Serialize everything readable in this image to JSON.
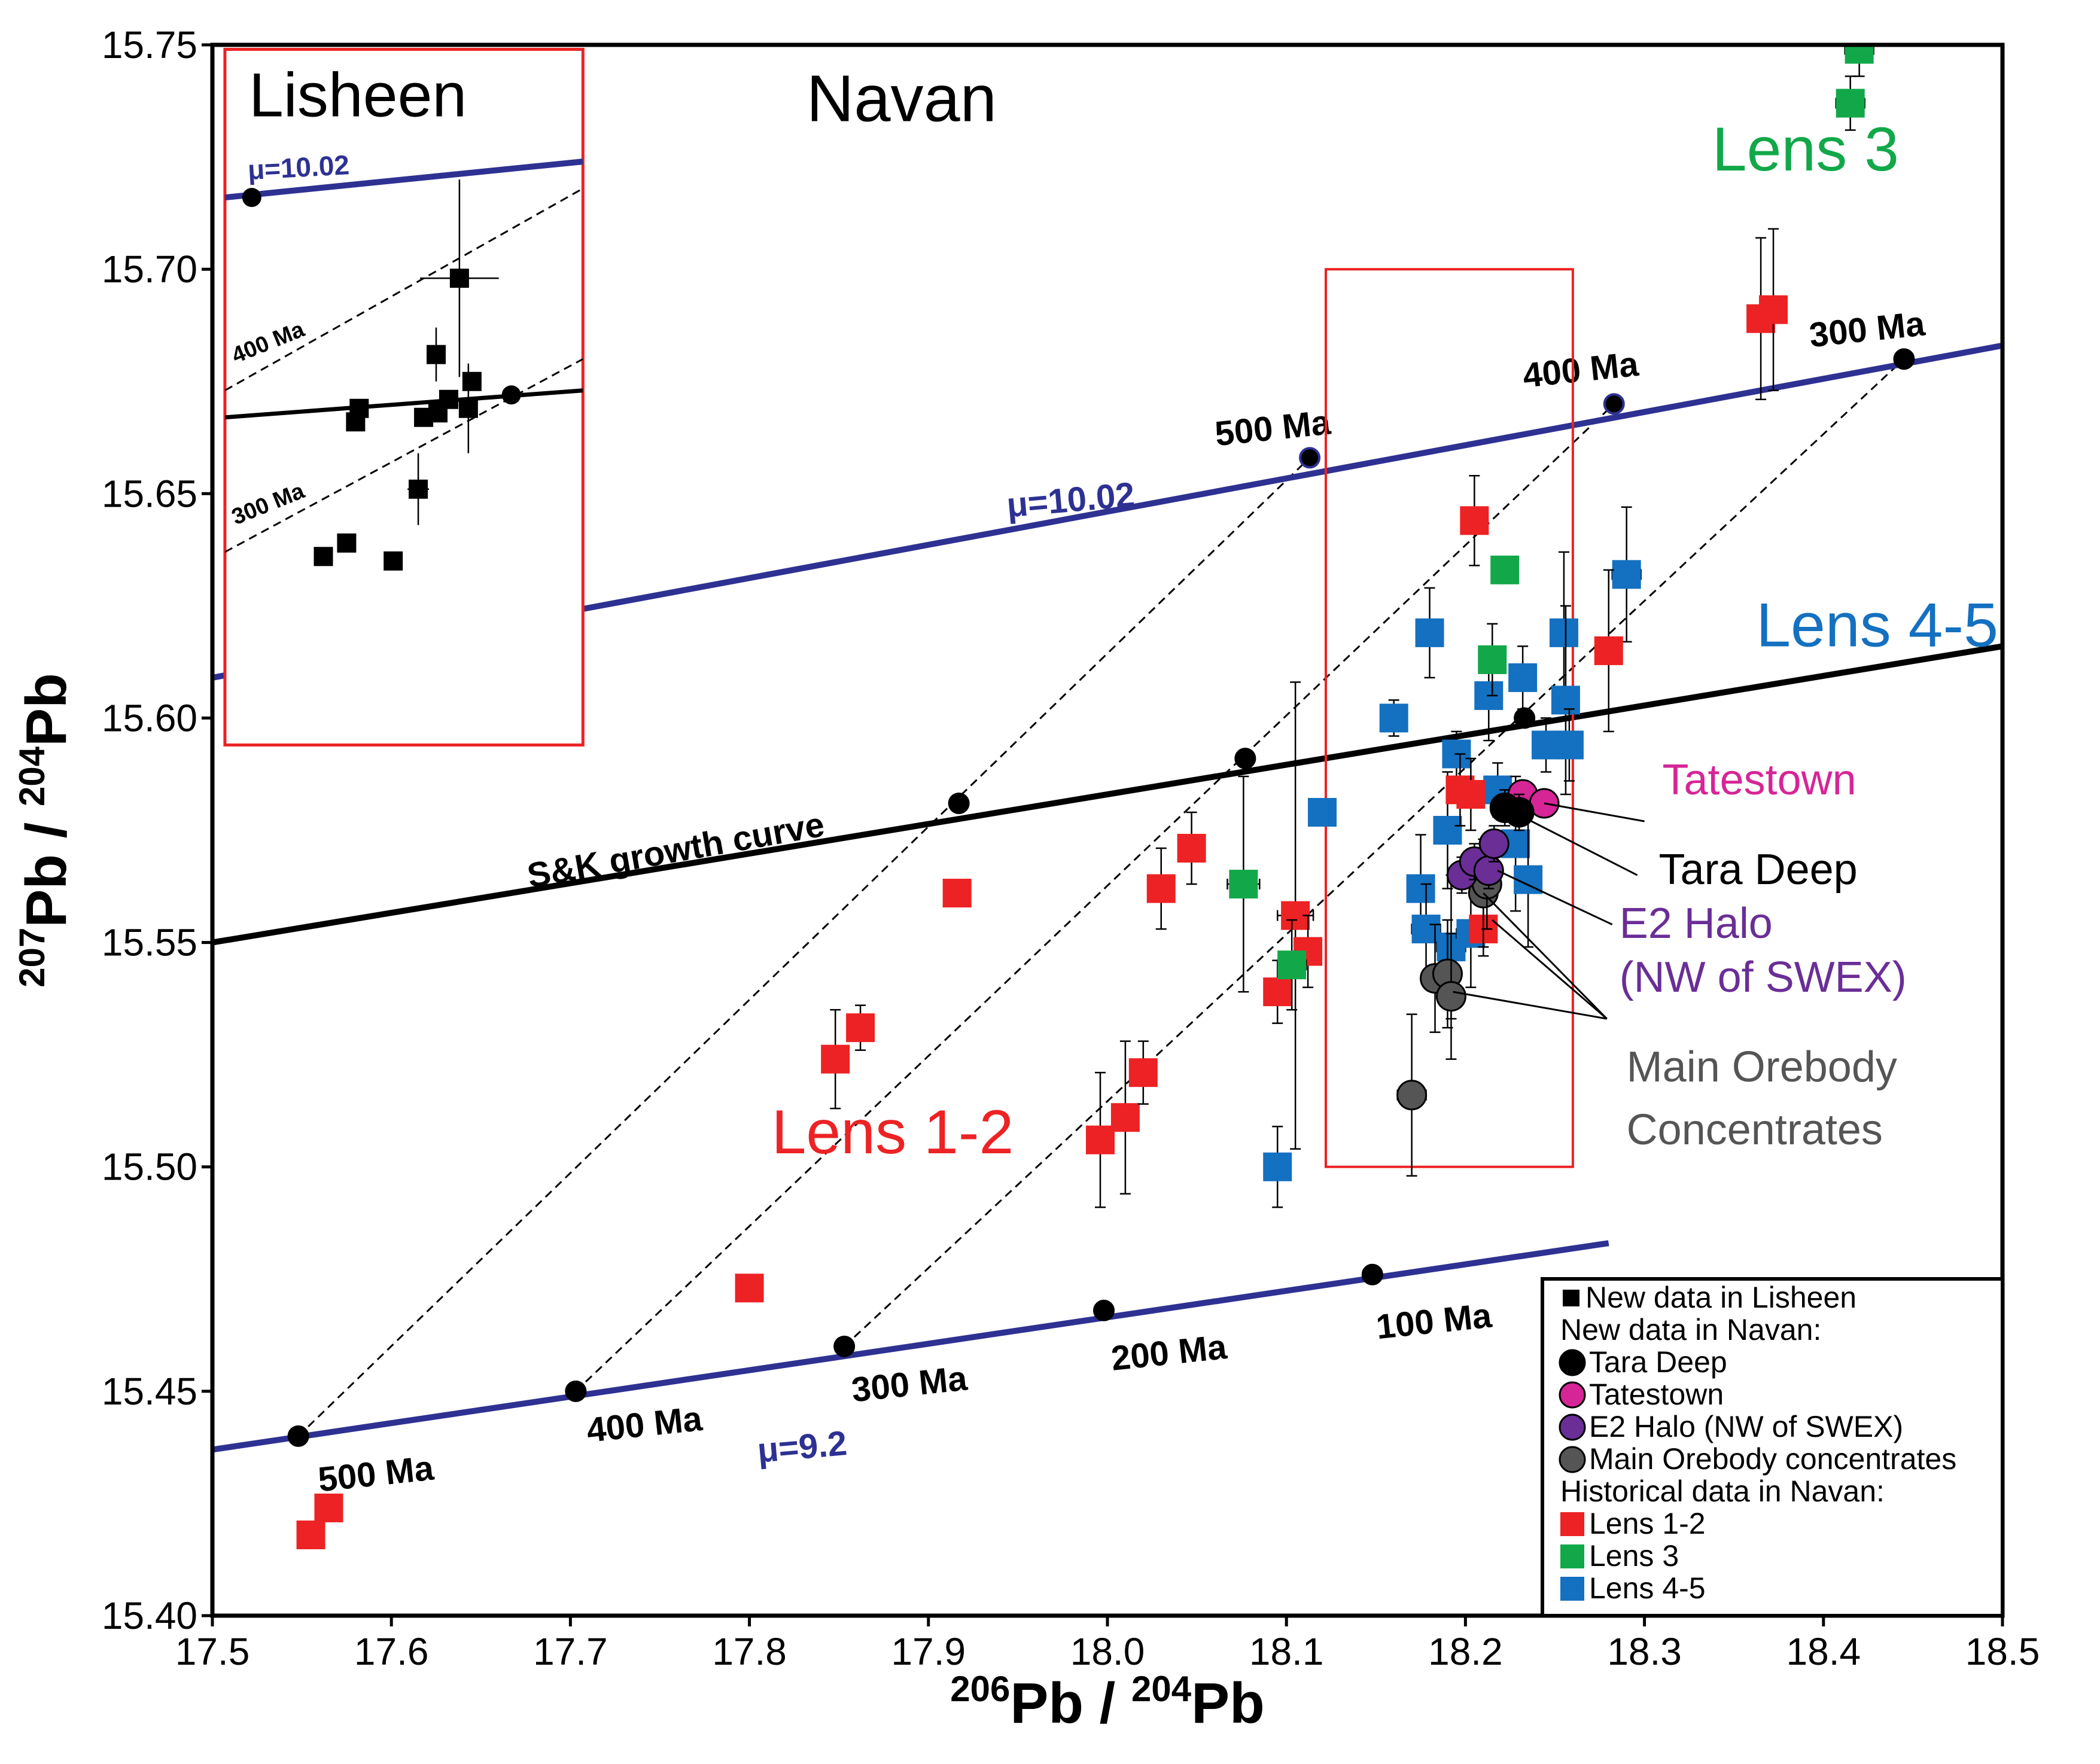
{
  "chart_data": {
    "type": "scatter",
    "xlabel": {
      "sup1": "206",
      "base1": "Pb / ",
      "sup2": "204",
      "base2": "Pb"
    },
    "ylabel": {
      "sup1": "207",
      "base1": "Pb / ",
      "sup2": "204",
      "base2": "Pb"
    },
    "xlim": [
      17.5,
      18.5
    ],
    "ylim": [
      15.4,
      15.75
    ],
    "xticks": [
      {
        "v": 17.5,
        "label": "17.5"
      },
      {
        "v": 17.6,
        "label": "17.6"
      },
      {
        "v": 17.7,
        "label": "17.7"
      },
      {
        "v": 17.8,
        "label": "17.8"
      },
      {
        "v": 17.9,
        "label": "17.9"
      },
      {
        "v": 18.0,
        "label": "18.0"
      },
      {
        "v": 18.1,
        "label": "18.1"
      },
      {
        "v": 18.2,
        "label": "18.2"
      },
      {
        "v": 18.3,
        "label": "18.3"
      },
      {
        "v": 18.4,
        "label": "18.4"
      },
      {
        "v": 18.5,
        "label": "18.5"
      }
    ],
    "yticks": [
      {
        "v": 15.4,
        "label": "15.40"
      },
      {
        "v": 15.45,
        "label": "15.45"
      },
      {
        "v": 15.5,
        "label": "15.50"
      },
      {
        "v": 15.55,
        "label": "15.55"
      },
      {
        "v": 15.6,
        "label": "15.60"
      },
      {
        "v": 15.65,
        "label": "15.65"
      },
      {
        "v": 15.7,
        "label": "15.70"
      },
      {
        "v": 15.75,
        "label": "15.75"
      }
    ],
    "colors": {
      "lens12": "#ed2224",
      "lens3": "#12a84a",
      "lens45": "#1470c0",
      "tatestown": "#d62597",
      "e2halo": "#6a2e96",
      "mainore": "#555555",
      "mu": "#2e3192",
      "black": "#000000",
      "box": "#ed2224"
    },
    "growth_curves": [
      {
        "name": "mu-10.02",
        "color": "mu",
        "pts": [
          [
            17.5,
            15.609
          ],
          [
            18.5,
            15.683
          ]
        ]
      },
      {
        "name": "sk",
        "color": "black",
        "pts": [
          [
            17.5,
            15.55
          ],
          [
            18.5,
            15.616
          ]
        ]
      },
      {
        "name": "mu-9.2",
        "color": "mu",
        "pts": [
          [
            17.5,
            15.437
          ],
          [
            18.28,
            15.483
          ]
        ]
      }
    ],
    "isochrons": [
      [
        [
          17.548,
          15.44
        ],
        [
          18.113,
          15.658
        ]
      ],
      [
        [
          17.703,
          15.45
        ],
        [
          18.283,
          15.67
        ]
      ],
      [
        [
          17.853,
          15.46
        ],
        [
          18.445,
          15.68
        ]
      ]
    ],
    "age_points": [
      {
        "c": "mu",
        "x": 18.113,
        "y": 15.658
      },
      {
        "c": "mu",
        "x": 18.283,
        "y": 15.67
      },
      {
        "c": "black",
        "x": 18.445,
        "y": 15.68
      },
      {
        "c": "black",
        "x": 17.917,
        "y": 15.581
      },
      {
        "c": "black",
        "x": 18.077,
        "y": 15.591
      },
      {
        "c": "black",
        "x": 18.233,
        "y": 15.6
      },
      {
        "c": "black",
        "x": 17.548,
        "y": 15.44
      },
      {
        "c": "black",
        "x": 17.703,
        "y": 15.45
      },
      {
        "c": "black",
        "x": 17.853,
        "y": 15.46
      },
      {
        "c": "black",
        "x": 17.998,
        "y": 15.468
      },
      {
        "c": "black",
        "x": 18.148,
        "y": 15.476
      }
    ],
    "age_labels": [
      {
        "t": "500 Ma",
        "x": 18.093,
        "y": 15.662,
        "rot": -6
      },
      {
        "t": "400 Ma",
        "x": 18.265,
        "y": 15.675,
        "rot": -6
      },
      {
        "t": "300 Ma",
        "x": 18.425,
        "y": 15.684,
        "rot": -6
      },
      {
        "t": "500 Ma",
        "x": 17.592,
        "y": 15.429,
        "rot": -6
      },
      {
        "t": "400 Ma",
        "x": 17.742,
        "y": 15.44,
        "rot": -6
      },
      {
        "t": "300 Ma",
        "x": 17.89,
        "y": 15.449,
        "rot": -6
      },
      {
        "t": "200 Ma",
        "x": 18.035,
        "y": 15.456,
        "rot": -6
      },
      {
        "t": "100 Ma",
        "x": 18.183,
        "y": 15.463,
        "rot": -6
      },
      {
        "t": "μ=10.02",
        "x": 17.98,
        "y": 15.646,
        "rot": -5,
        "c": "mu"
      },
      {
        "t": "μ=9.2",
        "x": 17.83,
        "y": 15.435,
        "rot": -5,
        "c": "mu"
      },
      {
        "t": "S&K growth curve",
        "x": 17.76,
        "y": 15.568,
        "rot": -10,
        "c": "black"
      }
    ],
    "series": [
      {
        "name": "Lens 1-2",
        "marker": "square",
        "color": "lens12",
        "points": [
          {
            "x": 17.555,
            "y": 15.418,
            "ex": 0.004,
            "ey": 0.003
          },
          {
            "x": 17.565,
            "y": 15.424,
            "ex": 0.004,
            "ey": 0.003
          },
          {
            "x": 17.8,
            "y": 15.473,
            "ex": 0,
            "ey": 0
          },
          {
            "x": 17.848,
            "y": 15.524,
            "ex": 0.007,
            "ey": 0.011
          },
          {
            "x": 17.862,
            "y": 15.531,
            "ex": 0.007,
            "ey": 0.005
          },
          {
            "x": 17.916,
            "y": 15.561,
            "ex": 0,
            "ey": 0
          },
          {
            "x": 17.996,
            "y": 15.506,
            "ex": 0.006,
            "ey": 0.015
          },
          {
            "x": 18.01,
            "y": 15.511,
            "ex": 0.007,
            "ey": 0.017
          },
          {
            "x": 18.02,
            "y": 15.521,
            "ex": 0.004,
            "ey": 0.007
          },
          {
            "x": 18.03,
            "y": 15.562,
            "ex": 0.006,
            "ey": 0.009
          },
          {
            "x": 18.047,
            "y": 15.571,
            "ex": 0.006,
            "ey": 0.008
          },
          {
            "x": 18.095,
            "y": 15.539,
            "ex": 0.006,
            "ey": 0.007
          },
          {
            "x": 18.105,
            "y": 15.556,
            "ex": 0.01,
            "ey": 0.052
          },
          {
            "x": 18.112,
            "y": 15.548,
            "ex": 0.006,
            "ey": 0.008
          },
          {
            "x": 18.197,
            "y": 15.584,
            "ex": 0.006,
            "ey": 0.008
          },
          {
            "x": 18.203,
            "y": 15.583,
            "ex": 0.006,
            "ey": 0.008
          },
          {
            "x": 18.205,
            "y": 15.644,
            "ex": 0.005,
            "ey": 0.01
          },
          {
            "x": 18.21,
            "y": 15.553,
            "ex": 0.006,
            "ey": 0.006
          },
          {
            "x": 18.28,
            "y": 15.615,
            "ex": 0.006,
            "ey": 0.018
          },
          {
            "x": 18.365,
            "y": 15.689,
            "ex": 0.007,
            "ey": 0.018
          },
          {
            "x": 18.372,
            "y": 15.691,
            "ex": 0.007,
            "ey": 0.018
          }
        ]
      },
      {
        "name": "Lens 3",
        "marker": "square",
        "color": "lens3",
        "points": [
          {
            "x": 18.076,
            "y": 15.563,
            "ex": 0.009,
            "ey": 0.024
          },
          {
            "x": 18.103,
            "y": 15.545,
            "ex": 0.008,
            "ey": 0.01
          },
          {
            "x": 18.215,
            "y": 15.613,
            "ex": 0.005,
            "ey": 0.008
          },
          {
            "x": 18.222,
            "y": 15.633,
            "ex": 0.004,
            "ey": 0.003
          },
          {
            "x": 18.415,
            "y": 15.737,
            "ex": 0.008,
            "ey": 0.006
          },
          {
            "x": 18.42,
            "y": 15.749,
            "ex": 0.008,
            "ey": 0.006
          }
        ]
      },
      {
        "name": "Lens 4-5",
        "marker": "square",
        "color": "lens45",
        "points": [
          {
            "x": 18.095,
            "y": 15.5,
            "ex": 0.003,
            "ey": 0.009
          },
          {
            "x": 18.12,
            "y": 15.579,
            "ex": 0,
            "ey": 0
          },
          {
            "x": 18.16,
            "y": 15.6,
            "ex": 0.005,
            "ey": 0.004
          },
          {
            "x": 18.175,
            "y": 15.562,
            "ex": 0.007,
            "ey": 0.012
          },
          {
            "x": 18.178,
            "y": 15.553,
            "ex": 0.008,
            "ey": 0.01
          },
          {
            "x": 18.18,
            "y": 15.619,
            "ex": 0.005,
            "ey": 0.01
          },
          {
            "x": 18.19,
            "y": 15.575,
            "ex": 0.006,
            "ey": 0.013
          },
          {
            "x": 18.192,
            "y": 15.549,
            "ex": 0.008,
            "ey": 0.016
          },
          {
            "x": 18.195,
            "y": 15.592,
            "ex": 0.005,
            "ey": 0.005
          },
          {
            "x": 18.203,
            "y": 15.552,
            "ex": 0.008,
            "ey": 0.012
          },
          {
            "x": 18.213,
            "y": 15.605,
            "ex": 0.005,
            "ey": 0.01
          },
          {
            "x": 18.218,
            "y": 15.584,
            "ex": 0.006,
            "ey": 0.006
          },
          {
            "x": 18.228,
            "y": 15.572,
            "ex": 0.006,
            "ey": 0.015
          },
          {
            "x": 18.232,
            "y": 15.609,
            "ex": 0.006,
            "ey": 0.007
          },
          {
            "x": 18.235,
            "y": 15.564,
            "ex": 0.006,
            "ey": 0.015
          },
          {
            "x": 18.245,
            "y": 15.594,
            "ex": 0.006,
            "ey": 0.006
          },
          {
            "x": 18.255,
            "y": 15.619,
            "ex": 0.006,
            "ey": 0.018
          },
          {
            "x": 18.256,
            "y": 15.604,
            "ex": 0.006,
            "ey": 0.021
          },
          {
            "x": 18.258,
            "y": 15.594,
            "ex": 0.006,
            "ey": 0.008
          },
          {
            "x": 18.29,
            "y": 15.632,
            "ex": 0.008,
            "ey": 0.015
          }
        ]
      },
      {
        "name": "Tara Deep",
        "marker": "circle",
        "color": "black",
        "points": [
          {
            "x": 18.222,
            "y": 15.58,
            "ex": 0.004,
            "ey": 0.004
          },
          {
            "x": 18.23,
            "y": 15.579,
            "ex": 0.004,
            "ey": 0.004
          }
        ]
      },
      {
        "name": "Tatestown",
        "marker": "circle",
        "color": "tatestown",
        "points": [
          {
            "x": 18.232,
            "y": 15.583,
            "ex": 0.004,
            "ey": 0.003
          },
          {
            "x": 18.244,
            "y": 15.581,
            "ex": 0.004,
            "ey": 0.003
          }
        ]
      },
      {
        "name": "E2 Halo (NW of SWEX)",
        "marker": "circle",
        "color": "e2halo",
        "points": [
          {
            "x": 18.198,
            "y": 15.565,
            "ex": 0.004,
            "ey": 0.004
          },
          {
            "x": 18.205,
            "y": 15.568,
            "ex": 0.004,
            "ey": 0.004
          },
          {
            "x": 18.213,
            "y": 15.566,
            "ex": 0.004,
            "ey": 0.004
          },
          {
            "x": 18.216,
            "y": 15.572,
            "ex": 0.004,
            "ey": 0.004
          }
        ]
      },
      {
        "name": "Main Orebody concentrates",
        "marker": "circle",
        "color": "mainore",
        "points": [
          {
            "x": 18.17,
            "y": 15.516,
            "ex": 0.008,
            "ey": 0.018
          },
          {
            "x": 18.183,
            "y": 15.542,
            "ex": 0.007,
            "ey": 0.012
          },
          {
            "x": 18.19,
            "y": 15.543,
            "ex": 0.006,
            "ey": 0.012
          },
          {
            "x": 18.192,
            "y": 15.538,
            "ex": 0.006,
            "ey": 0.014
          },
          {
            "x": 18.21,
            "y": 15.561,
            "ex": 0.006,
            "ey": 0.012
          },
          {
            "x": 18.212,
            "y": 15.563,
            "ex": 0.005,
            "ey": 0.01
          }
        ]
      }
    ],
    "lisheen_inset": {
      "title": "Lisheen",
      "xlim": [
        17.5,
        18.5
      ],
      "ylim": [
        15.4,
        15.75
      ],
      "box_corners": [
        [
          17.507,
          15.594
        ],
        [
          17.707,
          15.749
        ]
      ],
      "mu_line": [
        [
          17.507,
          15.716
        ],
        [
          17.707,
          15.724
        ]
      ],
      "sk_line": [
        [
          17.507,
          15.667
        ],
        [
          17.707,
          15.673
        ]
      ],
      "iso_400": [
        [
          17.507,
          15.673
        ],
        [
          17.707,
          15.718
        ]
      ],
      "iso_300": [
        [
          17.507,
          15.637
        ],
        [
          17.707,
          15.68
        ]
      ],
      "mu_label": {
        "t": "μ=10.02",
        "x": 17.52,
        "y": 15.72,
        "rot": -3
      },
      "iso_label_400": {
        "t": "400 Ma",
        "x": 17.513,
        "y": 15.679,
        "rot": -22
      },
      "iso_label_300": {
        "t": "300 Ma",
        "x": 17.513,
        "y": 15.643,
        "rot": -22
      },
      "dots": [
        [
          17.522,
          15.716
        ],
        [
          17.667,
          15.672
        ]
      ],
      "squares": [
        {
          "x": 17.638,
          "y": 15.698,
          "ex": 0.022,
          "ey": 0.022
        },
        {
          "x": 17.625,
          "y": 15.681,
          "ex": 0.004,
          "ey": 0.006
        },
        {
          "x": 17.58,
          "y": 15.666,
          "ex": 0,
          "ey": 0
        },
        {
          "x": 17.582,
          "y": 15.669,
          "ex": 0,
          "ey": 0
        },
        {
          "x": 17.618,
          "y": 15.667,
          "ex": 0,
          "ey": 0
        },
        {
          "x": 17.626,
          "y": 15.668,
          "ex": 0,
          "ey": 0
        },
        {
          "x": 17.632,
          "y": 15.671,
          "ex": 0,
          "ey": 0
        },
        {
          "x": 17.645,
          "y": 15.675,
          "ex": 0,
          "ey": 0
        },
        {
          "x": 17.643,
          "y": 15.669,
          "ex": 0.003,
          "ey": 0.01
        },
        {
          "x": 17.615,
          "y": 15.651,
          "ex": 0.006,
          "ey": 0.008
        },
        {
          "x": 17.562,
          "y": 15.636,
          "ex": 0,
          "ey": 0
        },
        {
          "x": 17.575,
          "y": 15.639,
          "ex": 0,
          "ey": 0
        },
        {
          "x": 17.601,
          "y": 15.635,
          "ex": 0,
          "ey": 0
        }
      ]
    },
    "navan_box": {
      "corners": [
        [
          18.122,
          15.5
        ],
        [
          18.26,
          15.7
        ]
      ]
    },
    "annotations": {
      "navan_title": {
        "t": "Navan",
        "x": 17.885,
        "y": 15.733
      },
      "lens3": {
        "t": "Lens 3",
        "x": 18.39,
        "y": 15.722,
        "c": "lens3"
      },
      "lens45": {
        "t": "Lens 4-5",
        "x": 18.43,
        "y": 15.616,
        "c": "lens45"
      },
      "lens12": {
        "t": "Lens 1-2",
        "x": 17.88,
        "y": 15.503,
        "c": "lens12"
      },
      "tatestown": {
        "t": "Tatestown",
        "x": 18.31,
        "y": 15.583,
        "c": "tatestown",
        "anchor": "start",
        "from": [
          18.244,
          15.581
        ],
        "to": [
          18.3,
          15.577
        ]
      },
      "taradeep": {
        "t": "Tara Deep",
        "x": 18.308,
        "y": 15.563,
        "c": "black",
        "anchor": "start",
        "from": [
          18.232,
          15.578
        ],
        "to": [
          18.296,
          15.565
        ]
      },
      "e2halo_1": {
        "t": "E2 Halo",
        "x": 18.286,
        "y": 15.551,
        "c": "e2halo",
        "anchor": "start",
        "from": [
          18.218,
          15.566
        ],
        "to": [
          18.282,
          15.554
        ]
      },
      "e2halo_2": {
        "t": "(NW of SWEX)",
        "x": 18.286,
        "y": 15.539,
        "c": "e2halo",
        "anchor": "start"
      },
      "mainore_1": {
        "t": "Main Orebody",
        "x": 18.29,
        "y": 15.519,
        "c": "mainore",
        "anchor": "start"
      },
      "mainore_2": {
        "t": "Concentrates",
        "x": 18.29,
        "y": 15.505,
        "c": "mainore",
        "anchor": "start"
      }
    },
    "mainore_leaders": [
      [
        [
          18.21,
          15.561
        ],
        [
          18.279,
          15.533
        ]
      ],
      [
        [
          18.215,
          15.555
        ],
        [
          18.279,
          15.533
        ]
      ],
      [
        [
          18.193,
          15.539
        ],
        [
          18.279,
          15.533
        ]
      ]
    ],
    "legend": {
      "position": "bottom-right",
      "items": [
        {
          "t": "New data in Lisheen",
          "marker": "small-square",
          "c": "black"
        },
        {
          "t": "New data in Navan:",
          "marker": "none"
        },
        {
          "t": "Tara Deep",
          "marker": "circle",
          "c": "black"
        },
        {
          "t": "Tatestown",
          "marker": "circle",
          "c": "tatestown"
        },
        {
          "t": "E2 Halo (NW of SWEX)",
          "marker": "circle",
          "c": "e2halo"
        },
        {
          "t": "Main Orebody concentrates",
          "marker": "circle",
          "c": "mainore"
        },
        {
          "t": "Historical data in Navan:",
          "marker": "none"
        },
        {
          "t": "Lens 1-2",
          "marker": "square",
          "c": "lens12"
        },
        {
          "t": "Lens 3",
          "marker": "square",
          "c": "lens3"
        },
        {
          "t": "Lens 4-5",
          "marker": "square",
          "c": "lens45"
        }
      ]
    }
  }
}
